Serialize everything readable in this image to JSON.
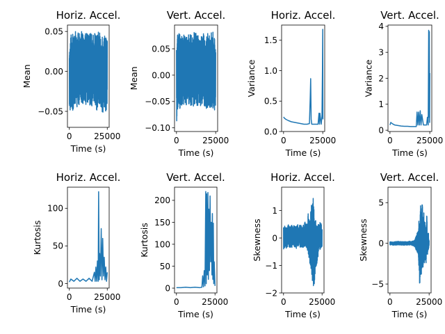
{
  "figure": {
    "background": "#ffffff"
  },
  "chart_data": [
    {
      "type": "line",
      "title": "Horiz. Accel.",
      "xlabel": "Time (s)",
      "ylabel": "Mean",
      "xlim": [
        -1250,
        26250
      ],
      "ylim": [
        -0.07,
        0.058
      ],
      "xticks": [
        0,
        25000
      ],
      "xtick_labels": [
        "0",
        "25000"
      ],
      "yticks": [
        -0.05,
        0.0,
        0.05
      ],
      "ytick_labels": [
        "−0.05",
        "0.00",
        "0.05"
      ],
      "color": "#1f77b4",
      "series": [
        {
          "x": [
            0,
            1000,
            2000,
            3000,
            4000,
            5000,
            6000,
            7000,
            8000,
            9000,
            10000,
            11000,
            12000,
            13000,
            14000,
            15000,
            16000,
            17000,
            18000,
            19000,
            20000,
            21000,
            22000,
            23000,
            24000,
            25000
          ],
          "y_max": [
            0.025,
            0.05,
            0.045,
            0.055,
            0.05,
            0.048,
            0.05,
            0.045,
            0.05,
            0.048,
            0.045,
            0.05,
            0.048,
            0.045,
            0.05,
            0.045,
            0.048,
            0.05,
            0.045,
            0.05,
            0.048,
            0.045,
            0.05,
            0.045,
            0.05,
            0.045
          ],
          "y_min": [
            -0.065,
            -0.045,
            -0.05,
            -0.045,
            -0.04,
            -0.045,
            -0.042,
            -0.045,
            -0.04,
            -0.045,
            -0.04,
            -0.045,
            -0.04,
            -0.045,
            -0.04,
            -0.045,
            -0.045,
            -0.04,
            -0.05,
            -0.045,
            -0.04,
            -0.05,
            -0.055,
            -0.045,
            -0.05,
            -0.045
          ]
        }
      ]
    },
    {
      "type": "line",
      "title": "Vert. Accel.",
      "xlabel": "Time (s)",
      "ylabel": "Mean",
      "xlim": [
        -1250,
        26250
      ],
      "ylim": [
        -0.107,
        0.095
      ],
      "xticks": [
        0,
        25000
      ],
      "xtick_labels": [
        "0",
        "25000"
      ],
      "yticks": [
        -0.1,
        -0.05,
        0.0,
        0.05
      ],
      "ytick_labels": [
        "−0.10",
        "−0.05",
        "0.00",
        "0.05"
      ],
      "color": "#1f77b4",
      "series": [
        {
          "x": [
            0,
            1000,
            2000,
            3000,
            4000,
            5000,
            6000,
            7000,
            8000,
            9000,
            10000,
            11000,
            12000,
            13000,
            14000,
            15000,
            16000,
            17000,
            18000,
            19000,
            20000,
            21000,
            22000,
            23000,
            24000,
            25000
          ],
          "y_max": [
            0.06,
            0.09,
            0.08,
            0.085,
            0.075,
            0.08,
            0.07,
            0.08,
            0.075,
            0.08,
            0.07,
            0.08,
            0.085,
            0.075,
            0.08,
            0.07,
            0.075,
            0.08,
            0.075,
            0.07,
            0.08,
            0.075,
            0.08,
            0.085,
            0.075,
            0.06
          ],
          "y_min": [
            -0.095,
            -0.06,
            -0.065,
            -0.06,
            -0.055,
            -0.06,
            -0.058,
            -0.062,
            -0.055,
            -0.06,
            -0.058,
            -0.06,
            -0.055,
            -0.06,
            -0.058,
            -0.06,
            -0.062,
            -0.055,
            -0.06,
            -0.065,
            -0.07,
            -0.06,
            -0.065,
            -0.06,
            -0.07,
            -0.06
          ]
        }
      ]
    },
    {
      "type": "line",
      "title": "Horiz. Accel.",
      "xlabel": "Time (s)",
      "ylabel": "Variance",
      "xlim": [
        -1250,
        26250
      ],
      "ylim": [
        0.0,
        1.75
      ],
      "xticks": [
        0,
        25000
      ],
      "xtick_labels": [
        "0",
        "25000"
      ],
      "yticks": [
        0.0,
        0.5,
        1.0,
        1.5
      ],
      "ytick_labels": [
        "0.0",
        "0.5",
        "1.0",
        "1.5"
      ],
      "color": "#1f77b4",
      "series": [
        {
          "x": [
            0,
            500,
            1500,
            3000,
            5000,
            7000,
            9000,
            11000,
            13000,
            15000,
            16500,
            17000,
            17300,
            17600,
            18000,
            20000,
            22000,
            22600,
            22900,
            23200,
            24000,
            24500,
            24800,
            25000,
            25100
          ],
          "y": [
            0.24,
            0.22,
            0.2,
            0.18,
            0.16,
            0.15,
            0.14,
            0.13,
            0.12,
            0.12,
            0.13,
            0.55,
            0.87,
            0.2,
            0.12,
            0.12,
            0.12,
            0.3,
            0.12,
            0.3,
            0.12,
            0.25,
            1.0,
            1.68,
            0.2
          ]
        }
      ]
    },
    {
      "type": "line",
      "title": "Vert. Accel.",
      "xlabel": "Time (s)",
      "ylabel": "Variance",
      "xlim": [
        -1250,
        26250
      ],
      "ylim": [
        -0.05,
        4.05
      ],
      "xticks": [
        0,
        25000
      ],
      "xtick_labels": [
        "0",
        "25000"
      ],
      "yticks": [
        0,
        1,
        2,
        3,
        4
      ],
      "ytick_labels": [
        "0",
        "1",
        "2",
        "3",
        "4"
      ],
      "color": "#1f77b4",
      "series": [
        {
          "x": [
            0,
            500,
            1500,
            3000,
            5000,
            7000,
            9000,
            11000,
            13000,
            15000,
            16500,
            17000,
            17500,
            18000,
            18500,
            19000,
            19500,
            20000,
            21000,
            22000,
            23000,
            23500,
            24000,
            24300,
            24500,
            24700,
            24900,
            25000
          ],
          "y": [
            0.2,
            0.3,
            0.25,
            0.2,
            0.18,
            0.16,
            0.15,
            0.15,
            0.14,
            0.14,
            0.14,
            0.7,
            0.2,
            0.7,
            0.2,
            0.75,
            0.2,
            0.6,
            0.2,
            0.2,
            0.2,
            0.5,
            0.2,
            3.85,
            0.5,
            3.8,
            0.3,
            2.2
          ]
        }
      ]
    },
    {
      "type": "line",
      "title": "Horiz. Accel.",
      "xlabel": "Time (s)",
      "ylabel": "Kurtosis",
      "xlim": [
        -1250,
        26250
      ],
      "ylim": [
        -6,
        128
      ],
      "xticks": [
        0,
        25000
      ],
      "xtick_labels": [
        "0",
        "25000"
      ],
      "yticks": [
        0,
        50,
        100
      ],
      "ytick_labels": [
        "0",
        "50",
        "100"
      ],
      "color": "#1f77b4",
      "series": [
        {
          "x": [
            0,
            1000,
            3000,
            5000,
            7000,
            9000,
            11000,
            13000,
            15000,
            16500,
            17000,
            17500,
            18000,
            18500,
            19000,
            19300,
            19700,
            20000,
            20500,
            21000,
            21500,
            22000,
            22500,
            23000,
            23500,
            24000,
            24500,
            25000
          ],
          "y": [
            2,
            6,
            3,
            7,
            3,
            6,
            3,
            7,
            3,
            15,
            3,
            22,
            3,
            30,
            3,
            122,
            5,
            40,
            10,
            73,
            5,
            60,
            10,
            35,
            5,
            22,
            3,
            15
          ]
        }
      ]
    },
    {
      "type": "line",
      "title": "Vert. Accel.",
      "xlabel": "Time (s)",
      "ylabel": "Kurtosis",
      "xlim": [
        -1250,
        26250
      ],
      "ylim": [
        -11,
        230
      ],
      "xticks": [
        0,
        25000
      ],
      "xtick_labels": [
        "0",
        "25000"
      ],
      "yticks": [
        0,
        50,
        100,
        150,
        200
      ],
      "ytick_labels": [
        "0",
        "50",
        "100",
        "150",
        "200"
      ],
      "color": "#1f77b4",
      "series": [
        {
          "x": [
            0,
            3000,
            6000,
            9000,
            12000,
            15000,
            16500,
            17000,
            17500,
            18000,
            18500,
            19000,
            19300,
            19600,
            20000,
            20400,
            20700,
            21000,
            21400,
            21800,
            22200,
            22600,
            23000,
            23300,
            23600,
            23900,
            24200,
            24500,
            25000
          ],
          "y": [
            1,
            1,
            2,
            1,
            2,
            1,
            2,
            28,
            3,
            40,
            5,
            220,
            10,
            215,
            30,
            218,
            20,
            180,
            40,
            210,
            60,
            150,
            30,
            170,
            20,
            148,
            10,
            60,
            5
          ]
        }
      ]
    },
    {
      "type": "line",
      "title": "Horiz. Accel.",
      "xlabel": "Time (s)",
      "ylabel": "Skewness",
      "xlim": [
        -1250,
        26250
      ],
      "ylim": [
        -2.0,
        1.85
      ],
      "xticks": [
        0,
        25000
      ],
      "xtick_labels": [
        "0",
        "25000"
      ],
      "yticks": [
        -2,
        -1,
        0,
        1
      ],
      "ytick_labels": [
        "−2",
        "−1",
        "0",
        "1"
      ],
      "color": "#1f77b4",
      "series": [
        {
          "x": [
            0,
            1000,
            2000,
            3000,
            4000,
            5000,
            6000,
            7000,
            8000,
            9000,
            10000,
            11000,
            12000,
            13000,
            14000,
            15000,
            16000,
            17000,
            18000,
            19000,
            20000,
            21000,
            22000,
            23000,
            24000,
            25000
          ],
          "y_max": [
            0.4,
            0.5,
            0.4,
            0.5,
            0.4,
            0.5,
            0.4,
            0.5,
            0.4,
            0.5,
            0.45,
            0.5,
            0.4,
            0.5,
            0.6,
            0.5,
            0.9,
            0.6,
            1.2,
            1.7,
            1.0,
            0.7,
            0.5,
            0.5,
            0.6,
            0.4
          ],
          "y_min": [
            -0.4,
            -0.35,
            -0.4,
            -0.3,
            -0.35,
            -0.4,
            -0.35,
            -0.3,
            -0.4,
            -0.35,
            -0.3,
            -0.35,
            -0.4,
            -0.35,
            -0.3,
            -0.4,
            -0.6,
            -0.9,
            -1.2,
            -1.8,
            -1.7,
            -1.2,
            -0.8,
            -0.5,
            -0.4,
            -0.3
          ]
        }
      ]
    },
    {
      "type": "line",
      "title": "Vert. Accel.",
      "xlabel": "Time (s)",
      "ylabel": "Skewness",
      "xlim": [
        -1250,
        26250
      ],
      "ylim": [
        -6.1,
        6.9
      ],
      "xticks": [
        0,
        25000
      ],
      "xtick_labels": [
        "0",
        "25000"
      ],
      "yticks": [
        -5,
        0,
        5
      ],
      "ytick_labels": [
        "−5",
        "0",
        "5"
      ],
      "color": "#1f77b4",
      "series": [
        {
          "x": [
            0,
            3000,
            6000,
            9000,
            12000,
            15000,
            16000,
            17000,
            18000,
            18500,
            19000,
            19500,
            20000,
            20500,
            21000,
            21500,
            22000,
            22500,
            23000,
            23500,
            24000,
            24500,
            25000
          ],
          "y_max": [
            0.2,
            0.2,
            0.25,
            0.2,
            0.25,
            0.3,
            0.5,
            1.2,
            1.5,
            3.0,
            2.5,
            6.5,
            4.0,
            6.0,
            3.5,
            5.0,
            2.5,
            3.0,
            1.5,
            4.0,
            1.0,
            1.5,
            0.5
          ],
          "y_min": [
            -0.2,
            -0.25,
            -0.2,
            -0.25,
            -0.2,
            -0.3,
            -0.5,
            -1.0,
            -1.5,
            -3.0,
            -5.5,
            -3.0,
            -4.5,
            -2.5,
            -3.5,
            -2.0,
            -2.5,
            -1.5,
            -3.0,
            -1.0,
            -1.5,
            -0.8,
            -0.5
          ]
        }
      ]
    }
  ]
}
